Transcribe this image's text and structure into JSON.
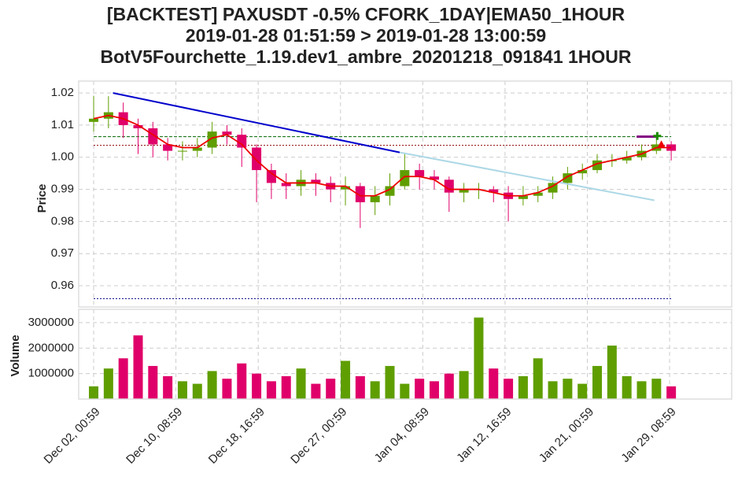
{
  "chart_data": {
    "type": "candlestick",
    "title": [
      "[BACKTEST] PAXUSDT -0.5% CFORK_1DAY|EMA50_1HOUR",
      "2019-01-28 01:51:59 > 2019-01-28 13:00:59",
      "BotV5Fourchette_1.19.dev1_ambre_20201218_091841 1HOUR"
    ],
    "xlim": [
      -36.4,
      1551
    ],
    "xticks": [
      {
        "value": 0,
        "label": "Dec 02, 00:59"
      },
      {
        "value": 200,
        "label": "Dec 10, 08:59"
      },
      {
        "value": 400,
        "label": "Dec 18, 16:59"
      },
      {
        "value": 600,
        "label": "Dec 27, 00:59"
      },
      {
        "value": 800,
        "label": "Jan 04, 08:59"
      },
      {
        "value": 1000,
        "label": "Jan 12, 16:59"
      },
      {
        "value": 1200,
        "label": "Jan 21, 00:59"
      },
      {
        "value": 1400,
        "label": "Jan 29, 08:59"
      }
    ],
    "x": [
      0,
      36,
      72,
      108,
      144,
      180,
      216,
      252,
      288,
      324,
      360,
      396,
      432,
      468,
      504,
      540,
      576,
      612,
      648,
      684,
      720,
      756,
      792,
      828,
      864,
      900,
      936,
      972,
      1008,
      1044,
      1080,
      1116,
      1152,
      1188,
      1224,
      1260,
      1296,
      1332,
      1368,
      1404
    ],
    "open": [
      1.011,
      1.012,
      1.014,
      1.01,
      1.009,
      1.004,
      1.002,
      1.002,
      1.003,
      1.008,
      1.007,
      1.003,
      0.996,
      0.992,
      0.991,
      0.993,
      0.992,
      0.99,
      0.991,
      0.986,
      0.988,
      0.991,
      0.996,
      0.994,
      0.993,
      0.989,
      0.99,
      0.99,
      0.989,
      0.987,
      0.988,
      0.989,
      0.992,
      0.995,
      0.996,
      0.999,
      0.999,
      1.0,
      1.002,
      1.004
    ],
    "high": [
      1.019,
      1.019,
      1.017,
      1.012,
      1.011,
      1.006,
      1.005,
      1.006,
      1.011,
      1.01,
      1.009,
      1.004,
      0.998,
      0.995,
      0.996,
      0.995,
      0.994,
      0.994,
      0.992,
      0.991,
      0.995,
      1.001,
      0.998,
      0.996,
      0.994,
      0.992,
      0.992,
      0.991,
      0.991,
      0.991,
      0.991,
      0.994,
      0.997,
      0.998,
      1.001,
      1.001,
      1.002,
      1.004,
      1.006,
      1.005
    ],
    "low": [
      1.008,
      1.009,
      1.006,
      1.001,
      1.0,
      0.999,
      0.999,
      1.0,
      1.001,
      1.004,
      0.997,
      0.986,
      0.987,
      0.987,
      0.988,
      0.988,
      0.986,
      0.985,
      0.978,
      0.982,
      0.985,
      0.99,
      0.99,
      0.99,
      0.983,
      0.986,
      0.987,
      0.986,
      0.98,
      0.985,
      0.986,
      0.987,
      0.99,
      0.993,
      0.995,
      0.997,
      0.998,
      0.999,
      1.001,
      0.999
    ],
    "close": [
      1.012,
      1.014,
      1.01,
      1.009,
      1.004,
      1.002,
      1.002,
      1.003,
      1.008,
      1.007,
      1.003,
      0.996,
      0.992,
      0.991,
      0.993,
      0.992,
      0.99,
      0.991,
      0.986,
      0.988,
      0.991,
      0.996,
      0.994,
      0.993,
      0.989,
      0.99,
      0.99,
      0.989,
      0.987,
      0.988,
      0.989,
      0.992,
      0.995,
      0.996,
      0.999,
      0.999,
      1.0,
      1.002,
      1.004,
      1.002
    ],
    "up_color": "#5f9e00",
    "down_color": "#e0006a",
    "price": {
      "ylabel": "Price",
      "ylim": [
        0.9534,
        1.0237
      ],
      "yticks": [
        0.96,
        0.97,
        0.98,
        0.99,
        {
          "value": 1,
          "label": "1.00"
        },
        1.01,
        1.02
      ],
      "ema": {
        "color": "#ee0000",
        "values": [
          1.012,
          1.013,
          1.012,
          1.01,
          1.007,
          1.004,
          1.003,
          1.003,
          1.006,
          1.007,
          1.004,
          0.999,
          0.995,
          0.992,
          0.992,
          0.992,
          0.991,
          0.991,
          0.988,
          0.988,
          0.99,
          0.994,
          0.994,
          0.993,
          0.99,
          0.99,
          0.99,
          0.989,
          0.988,
          0.988,
          0.989,
          0.991,
          0.994,
          0.996,
          0.998,
          0.999,
          1.0,
          1.001,
          1.003,
          1.003
        ]
      },
      "hlines": [
        {
          "y": 1.0064,
          "color": "#006400",
          "dash": "4,2"
        },
        {
          "y": 1.0037,
          "color": "#8b0000",
          "dash": "2,2"
        },
        {
          "y": 0.956,
          "color": "#000080",
          "dash": "2,2"
        }
      ],
      "segments": [
        {
          "x": [
            47,
            744
          ],
          "y": [
            1.02,
            1.0015
          ],
          "color": "#0000cc",
          "width": 2
        },
        {
          "x": [
            744,
            1363
          ],
          "y": [
            1.0015,
            0.9866
          ],
          "color": "#add8e6",
          "width": 2
        },
        {
          "x": [
            1320,
            1372
          ],
          "y": [
            1.0064,
            1.0064
          ],
          "color": "#800080",
          "width": 3
        }
      ],
      "markers": [
        {
          "x": 1370,
          "y": 1.0066,
          "color": "#1a8a00",
          "shape": "plus"
        },
        {
          "x": 1380,
          "y": 1.004,
          "color": "#ee0000",
          "shape": "triangle"
        }
      ]
    },
    "volume": {
      "ylabel": "Volume",
      "ylim": [
        0,
        3523000
      ],
      "yticks": [
        1000000,
        2000000,
        3000000
      ],
      "values": [
        500000,
        1200000,
        1600000,
        2500000,
        1300000,
        900000,
        700000,
        600000,
        1100000,
        800000,
        1400000,
        1000000,
        700000,
        900000,
        1200000,
        600000,
        800000,
        1500000,
        900000,
        700000,
        1300000,
        600000,
        800000,
        700000,
        1000000,
        1100000,
        3200000,
        1200000,
        800000,
        900000,
        1600000,
        700000,
        800000,
        600000,
        1300000,
        2100000,
        900000,
        700000,
        800000,
        500000
      ]
    }
  }
}
